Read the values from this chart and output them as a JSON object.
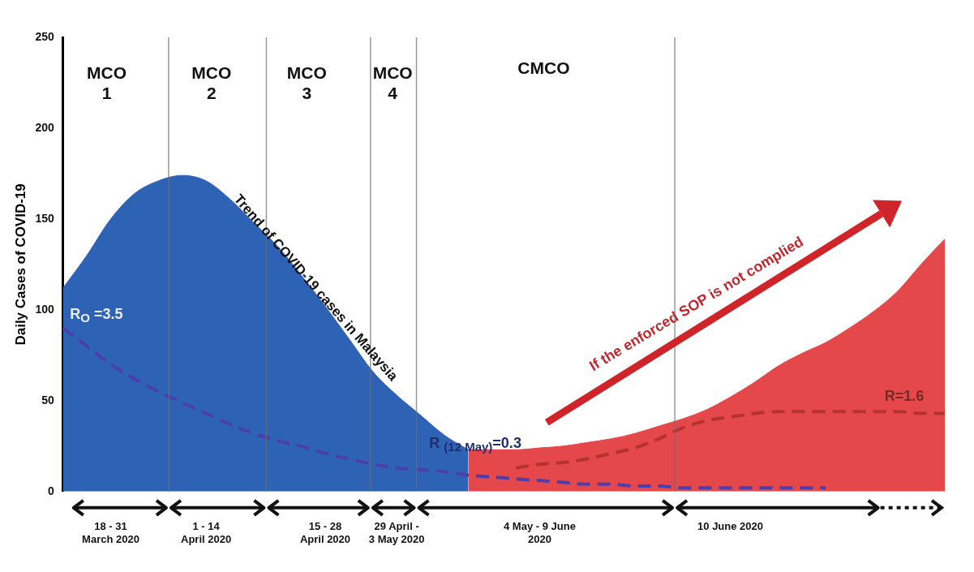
{
  "chart_data": {
    "type": "area",
    "ylabel": "Daily Cases of COVID-19",
    "categories": [
      null,
      null,
      "18 - 31\nMarch 2020",
      null,
      null,
      null,
      "1 - 14\nApril 2020",
      null,
      null,
      null,
      null,
      "15 - 28\nApril 2020",
      null,
      null,
      "29 April -\n3 May 2020",
      null,
      null,
      null,
      null,
      null,
      "4 May - 9 June\n2020",
      null,
      null,
      null,
      null,
      null,
      null,
      null,
      "10 June 2020",
      null,
      null,
      null,
      null,
      null,
      null,
      null,
      null,
      null
    ],
    "series": [
      {
        "color": "#2e62b5",
        "values": [
          112,
          130,
          150,
          164,
          171,
          174,
          171,
          161,
          148,
          135,
          119,
          102,
          84,
          66,
          53,
          42,
          31,
          23,
          null,
          null,
          null,
          null,
          null,
          null,
          null,
          null,
          null,
          null,
          null,
          null,
          null,
          null,
          null,
          null,
          null,
          null,
          null,
          null
        ]
      },
      {
        "color": "#e5484b",
        "values": [
          null,
          null,
          null,
          null,
          null,
          null,
          null,
          null,
          null,
          null,
          null,
          null,
          null,
          null,
          null,
          null,
          null,
          23,
          23,
          23,
          24,
          25,
          27,
          29,
          32,
          36,
          40,
          45,
          52,
          60,
          69,
          76,
          82,
          90,
          99,
          110,
          125,
          139
        ]
      },
      {
        "type": "line",
        "color": "#4b3fae",
        "line_style": "dashed",
        "values": [
          90,
          80,
          70,
          62,
          55,
          49,
          43,
          37,
          32,
          28,
          25,
          21,
          18,
          15,
          13,
          12,
          11,
          9,
          8,
          7,
          6,
          5,
          4,
          4,
          3,
          3,
          2,
          2,
          2,
          2,
          2,
          2,
          2,
          null,
          null,
          null,
          null,
          null
        ]
      },
      {
        "type": "line",
        "color": "#b5332e",
        "line_style": "dashed",
        "values": [
          null,
          null,
          null,
          null,
          null,
          null,
          null,
          null,
          null,
          null,
          null,
          null,
          null,
          null,
          null,
          null,
          null,
          null,
          null,
          13,
          15,
          16,
          18,
          21,
          24,
          29,
          35,
          39,
          41,
          43,
          44,
          44,
          44,
          44,
          44,
          44,
          43,
          43
        ]
      }
    ],
    "ylim": [
      0,
      250
    ],
    "yticks": [
      0,
      50,
      100,
      150,
      200,
      250
    ],
    "grid": "x",
    "legend": false,
    "marker": "none",
    "annotations": [
      "MCO\n1",
      "MCO\n2",
      "MCO\n3",
      "MCO\n4",
      "CMCO",
      "Trend of COVID-19 cases in Malaysia",
      "If the enforced SOP is not complied",
      "R$_{O}$ =3.5",
      "R $_{(12 May)}$=0.3",
      "R=1.6"
    ]
  }
}
